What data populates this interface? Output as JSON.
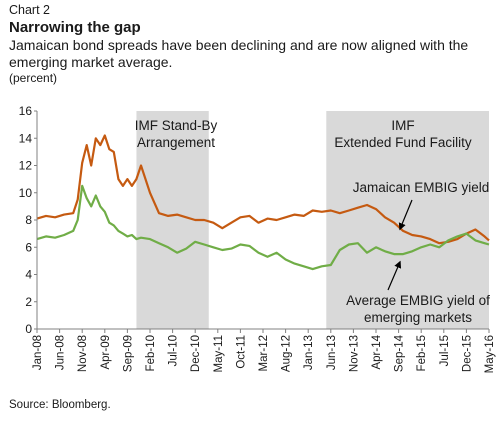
{
  "header": {
    "chart_number": "Chart 2",
    "title": "Narrowing the gap",
    "subtitle": "Jamaican bond spreads have been declining and are now aligned with the emerging market average.",
    "unit": "(percent)"
  },
  "source": "Source: Bloomberg.",
  "colors": {
    "jamaica": "#C55A11",
    "em": "#70AD47",
    "band": "#D9D9D9"
  },
  "chart_data": {
    "type": "line",
    "ylabel": "(percent)",
    "ylim": [
      0,
      16
    ],
    "yticks": [
      0,
      2,
      4,
      6,
      8,
      10,
      12,
      14,
      16
    ],
    "xlim": [
      "2008-01",
      "2016-05"
    ],
    "xticks": [
      "Jan-08",
      "Jun-08",
      "Nov-08",
      "Apr-09",
      "Sep-09",
      "Feb-10",
      "Jul-10",
      "Dec-10",
      "May-11",
      "Oct-11",
      "Mar-12",
      "Aug-12",
      "Jan-13",
      "Jun-13",
      "Nov-13",
      "Apr-14",
      "Sep-14",
      "Feb-15",
      "Jul-15",
      "Dec-15",
      "May-16"
    ],
    "grid": false,
    "shaded_periods": [
      {
        "label": "IMF Stand-By Arrangement",
        "start": "2009-11",
        "end": "2011-03"
      },
      {
        "label": "IMF Extended Fund Facility",
        "start": "2013-05",
        "end": "2016-05"
      }
    ],
    "series": [
      {
        "name": "Jamaican EMBIG yield",
        "x": [
          "2008-01",
          "2008-03",
          "2008-05",
          "2008-07",
          "2008-09",
          "2008-10",
          "2008-11",
          "2008-12",
          "2009-01",
          "2009-02",
          "2009-03",
          "2009-04",
          "2009-05",
          "2009-06",
          "2009-07",
          "2009-08",
          "2009-09",
          "2009-10",
          "2009-11",
          "2009-12",
          "2010-02",
          "2010-04",
          "2010-06",
          "2010-08",
          "2010-10",
          "2010-12",
          "2011-02",
          "2011-04",
          "2011-06",
          "2011-08",
          "2011-10",
          "2011-12",
          "2012-02",
          "2012-04",
          "2012-06",
          "2012-08",
          "2012-10",
          "2012-12",
          "2013-02",
          "2013-04",
          "2013-06",
          "2013-08",
          "2013-10",
          "2013-12",
          "2014-02",
          "2014-04",
          "2014-06",
          "2014-08",
          "2014-10",
          "2014-12",
          "2015-02",
          "2015-04",
          "2015-06",
          "2015-08",
          "2015-10",
          "2015-12",
          "2016-02",
          "2016-04",
          "2016-05"
        ],
        "values": [
          8.1,
          8.3,
          8.2,
          8.4,
          8.5,
          9.5,
          12.2,
          13.5,
          12.0,
          14.0,
          13.5,
          14.2,
          13.2,
          13.0,
          11.0,
          10.5,
          11.0,
          10.5,
          11.0,
          12.0,
          10.0,
          8.5,
          8.3,
          8.4,
          8.2,
          8.0,
          8.0,
          7.8,
          7.4,
          7.8,
          8.2,
          8.3,
          7.8,
          8.1,
          8.0,
          8.2,
          8.4,
          8.3,
          8.7,
          8.6,
          8.7,
          8.5,
          8.7,
          8.9,
          9.1,
          8.8,
          8.2,
          7.8,
          7.2,
          6.9,
          6.8,
          6.6,
          6.3,
          6.4,
          6.6,
          7.0,
          7.3,
          6.8,
          6.5
        ]
      },
      {
        "name": "Average EMBIG yield of emerging markets",
        "x": [
          "2008-01",
          "2008-03",
          "2008-05",
          "2008-07",
          "2008-09",
          "2008-10",
          "2008-11",
          "2008-12",
          "2009-01",
          "2009-02",
          "2009-03",
          "2009-04",
          "2009-05",
          "2009-06",
          "2009-07",
          "2009-08",
          "2009-09",
          "2009-10",
          "2009-11",
          "2009-12",
          "2010-02",
          "2010-04",
          "2010-06",
          "2010-08",
          "2010-10",
          "2010-12",
          "2011-02",
          "2011-04",
          "2011-06",
          "2011-08",
          "2011-10",
          "2011-12",
          "2012-02",
          "2012-04",
          "2012-06",
          "2012-08",
          "2012-10",
          "2012-12",
          "2013-02",
          "2013-04",
          "2013-06",
          "2013-08",
          "2013-10",
          "2013-12",
          "2014-02",
          "2014-04",
          "2014-06",
          "2014-08",
          "2014-10",
          "2014-12",
          "2015-02",
          "2015-04",
          "2015-06",
          "2015-08",
          "2015-10",
          "2015-12",
          "2016-02",
          "2016-04",
          "2016-05"
        ],
        "values": [
          6.6,
          6.8,
          6.7,
          6.9,
          7.2,
          8.0,
          10.5,
          9.6,
          9.0,
          9.8,
          9.0,
          8.6,
          7.8,
          7.6,
          7.2,
          7.0,
          6.8,
          6.9,
          6.6,
          6.7,
          6.6,
          6.3,
          6.0,
          5.6,
          5.9,
          6.4,
          6.2,
          6.0,
          5.8,
          5.9,
          6.2,
          6.1,
          5.6,
          5.3,
          5.6,
          5.1,
          4.8,
          4.6,
          4.4,
          4.6,
          4.7,
          5.8,
          6.2,
          6.3,
          5.6,
          6.0,
          5.7,
          5.5,
          5.5,
          5.7,
          6.0,
          6.2,
          6.0,
          6.5,
          6.8,
          7.0,
          6.5,
          6.3,
          6.2
        ]
      }
    ],
    "annotations": [
      {
        "text": "IMF Stand-By Arrangement",
        "lines": [
          "IMF Stand-By",
          "Arrangement"
        ]
      },
      {
        "text": "IMF Extended Fund Facility",
        "lines": [
          "IMF",
          "Extended Fund Facility"
        ]
      },
      {
        "text": "Jamaican EMBIG yield",
        "lines": [
          "Jamaican EMBIG yield"
        ]
      },
      {
        "text": "Average EMBIG yield of emerging markets",
        "lines": [
          "Average EMBIG yield of",
          "emerging markets"
        ]
      }
    ]
  }
}
